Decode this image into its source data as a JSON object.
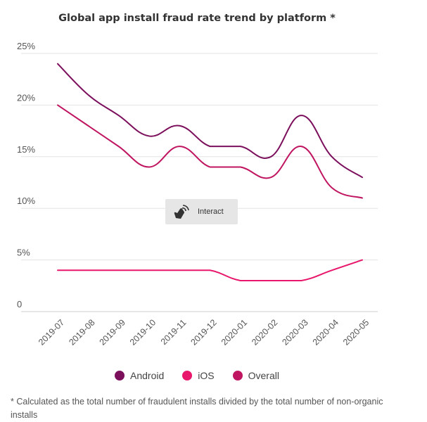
{
  "chart_data": {
    "type": "line",
    "title": "Global app install fraud rate trend by platform *",
    "categories": [
      "2019-07",
      "2019-08",
      "2019-09",
      "2019-10",
      "2019-11",
      "2019-12",
      "2020-01",
      "2020-02",
      "2020-03",
      "2020-04",
      "2020-05"
    ],
    "yticks": [
      "0",
      "5%",
      "10%",
      "15%",
      "20%",
      "25%"
    ],
    "ylim": [
      0,
      25
    ],
    "grid": true,
    "legend_position": "bottom",
    "series": [
      {
        "name": "Android",
        "color": "#7b0f5c",
        "values": [
          24,
          21,
          19,
          17,
          18,
          16,
          16,
          15,
          19,
          15,
          13
        ]
      },
      {
        "name": "iOS",
        "color": "#e8176b",
        "values": [
          4,
          4,
          4,
          4,
          4,
          4,
          3,
          3,
          3,
          4,
          5
        ]
      },
      {
        "name": "Overall",
        "color": "#c01560",
        "values": [
          20,
          18,
          16,
          14,
          16,
          14,
          14,
          13,
          16,
          12,
          11
        ]
      }
    ]
  },
  "overlay": {
    "interact_label": "Interact",
    "icon": "hand-pointer-icon"
  },
  "footnote": "* Calculated as the total number of fraudulent installs divided by the total number of non-organic installs"
}
